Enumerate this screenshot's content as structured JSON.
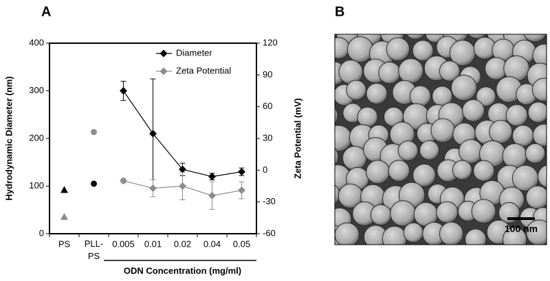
{
  "chart_data": {
    "type": "line",
    "panel_label": "A",
    "categories": [
      "PS",
      "PLL-PS",
      "0.005",
      "0.01",
      "0.02",
      "0.04",
      "0.05"
    ],
    "group_range": [
      2,
      6
    ],
    "group_label": "ODN Concentration (mg/ml)",
    "ylabel": "Hydrodynamic Diameter (nm)",
    "y2label": "Zeta Potential (mV)",
    "ylim": [
      0,
      400
    ],
    "yticks": [
      0,
      100,
      200,
      300,
      400
    ],
    "y2lim": [
      -60,
      120
    ],
    "y2ticks": [
      -60,
      -30,
      0,
      30,
      60,
      90,
      120
    ],
    "legend": "upper right",
    "series": [
      {
        "name": "Diameter",
        "color": "#000000",
        "axis": "y",
        "markers": [
          "triangle",
          "circle",
          "diamond",
          "diamond",
          "diamond",
          "diamond",
          "diamond"
        ],
        "values": [
          92,
          105,
          300,
          210,
          135,
          120,
          130
        ],
        "errors": [
          null,
          null,
          20,
          115,
          13,
          7,
          8
        ]
      },
      {
        "name": "Zeta Potential",
        "color": "#8c8c8c",
        "axis": "y2",
        "markers": [
          "triangle",
          "circle",
          "diamond",
          "diamond",
          "diamond",
          "diamond",
          "diamond"
        ],
        "values": [
          -44,
          36,
          -10,
          -17,
          -15,
          -24,
          -19
        ],
        "errors": [
          null,
          null,
          2,
          8,
          13,
          13,
          8
        ]
      }
    ]
  },
  "image": {
    "panel_label": "B",
    "scale_bar": "100 nm"
  }
}
